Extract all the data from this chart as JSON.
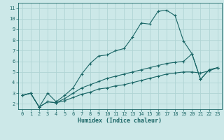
{
  "xlabel": "Humidex (Indice chaleur)",
  "background_color": "#cce8e8",
  "grid_color": "#b0d4d4",
  "line_color": "#1a6666",
  "xlim": [
    -0.5,
    23.5
  ],
  "ylim": [
    1.5,
    11.5
  ],
  "xticks": [
    0,
    1,
    2,
    3,
    4,
    5,
    6,
    7,
    8,
    9,
    10,
    11,
    12,
    13,
    14,
    15,
    16,
    17,
    18,
    19,
    20,
    21,
    22,
    23
  ],
  "yticks": [
    2,
    3,
    4,
    5,
    6,
    7,
    8,
    9,
    10,
    11
  ],
  "line1_x": [
    0,
    1,
    2,
    3,
    4,
    5,
    6,
    7,
    8,
    9,
    10,
    11,
    12,
    13,
    14,
    15,
    16,
    17,
    18,
    19,
    20,
    21,
    22,
    23
  ],
  "line1_y": [
    2.8,
    3.0,
    1.7,
    3.0,
    2.2,
    2.8,
    3.5,
    4.8,
    5.8,
    6.5,
    6.6,
    7.0,
    7.2,
    8.3,
    9.6,
    9.5,
    10.7,
    10.8,
    10.3,
    7.9,
    6.7,
    4.3,
    5.2,
    5.4
  ],
  "line2_x": [
    0,
    1,
    2,
    3,
    4,
    5,
    6,
    7,
    8,
    9,
    10,
    11,
    12,
    13,
    14,
    15,
    16,
    17,
    18,
    19,
    20,
    21,
    22,
    23
  ],
  "line2_y": [
    2.8,
    3.0,
    1.7,
    2.2,
    2.1,
    2.5,
    3.0,
    3.5,
    3.8,
    4.1,
    4.4,
    4.6,
    4.8,
    5.0,
    5.2,
    5.4,
    5.6,
    5.8,
    5.9,
    6.0,
    6.7,
    4.3,
    5.2,
    5.4
  ],
  "line3_x": [
    0,
    1,
    2,
    3,
    4,
    5,
    6,
    7,
    8,
    9,
    10,
    11,
    12,
    13,
    14,
    15,
    16,
    17,
    18,
    19,
    20,
    21,
    22,
    23
  ],
  "line3_y": [
    2.8,
    3.0,
    1.7,
    2.2,
    2.1,
    2.3,
    2.6,
    2.9,
    3.1,
    3.4,
    3.5,
    3.7,
    3.8,
    4.0,
    4.2,
    4.4,
    4.6,
    4.8,
    4.9,
    5.0,
    5.0,
    4.9,
    5.1,
    5.4
  ]
}
